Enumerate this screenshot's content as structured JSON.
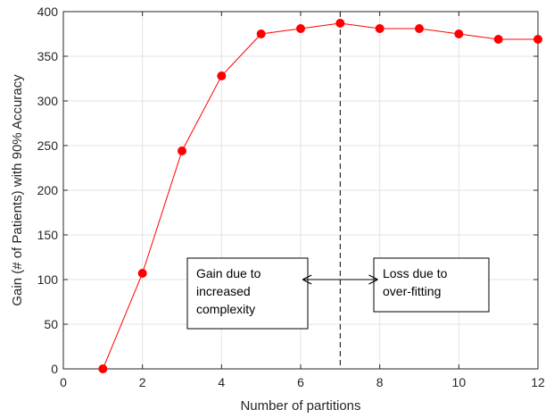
{
  "chart_data": {
    "type": "line",
    "xlabel": "Number of partitions",
    "ylabel": "Gain (# of Patients) with 90% Accuracy",
    "xlim": [
      0,
      12
    ],
    "ylim": [
      0,
      400
    ],
    "xticks": [
      0,
      2,
      4,
      6,
      8,
      10,
      12
    ],
    "yticks": [
      0,
      50,
      100,
      150,
      200,
      250,
      300,
      350,
      400
    ],
    "grid": true,
    "series": [
      {
        "x": [
          1,
          2,
          3,
          4,
          5,
          6,
          7,
          8,
          9,
          10,
          11,
          12
        ],
        "y": [
          0,
          107,
          244,
          328,
          375,
          381,
          387,
          381,
          381,
          375,
          369,
          369
        ],
        "color": "#ff0000",
        "marker": "circle"
      }
    ],
    "reference_line": {
      "x": 7,
      "style": "dashed",
      "color": "#000000"
    },
    "annotations": [
      {
        "lines": [
          "Gain due to",
          "increased",
          "complexity"
        ]
      },
      {
        "lines": [
          "Loss due to",
          "over-fitting"
        ]
      }
    ],
    "double_arrow": {
      "x_from": 6.05,
      "x_to": 7.95,
      "y": 100
    }
  }
}
